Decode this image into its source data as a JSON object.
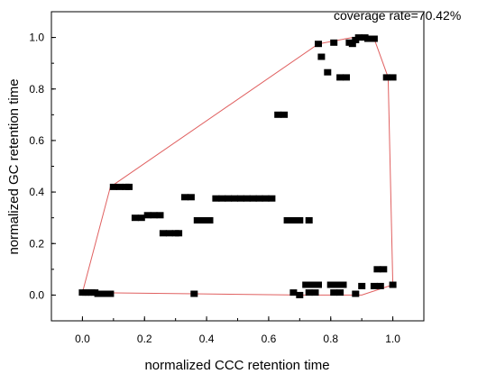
{
  "chart_data": {
    "type": "scatter",
    "annotation": "coverage rate=70.42%",
    "xlabel": "normalized CCC retention time",
    "ylabel": "normalized GC retention time",
    "xlim": [
      -0.1,
      1.1
    ],
    "ylim": [
      -0.1,
      1.1
    ],
    "xticks": [
      "0.0",
      "0.2",
      "0.4",
      "0.6",
      "0.8",
      "1.0"
    ],
    "yticks": [
      "0.0",
      "0.2",
      "0.4",
      "0.6",
      "0.8",
      "1.0"
    ],
    "grid": false,
    "marker_color": "#000000",
    "hull_color": "#e06060",
    "points": [
      [
        0.0,
        0.01
      ],
      [
        0.01,
        0.01
      ],
      [
        0.02,
        0.01
      ],
      [
        0.03,
        0.01
      ],
      [
        0.04,
        0.01
      ],
      [
        0.05,
        0.005
      ],
      [
        0.06,
        0.005
      ],
      [
        0.07,
        0.005
      ],
      [
        0.08,
        0.005
      ],
      [
        0.09,
        0.005
      ],
      [
        0.1,
        0.42
      ],
      [
        0.12,
        0.42
      ],
      [
        0.14,
        0.42
      ],
      [
        0.15,
        0.42
      ],
      [
        0.17,
        0.3
      ],
      [
        0.19,
        0.3
      ],
      [
        0.21,
        0.31
      ],
      [
        0.23,
        0.31
      ],
      [
        0.25,
        0.31
      ],
      [
        0.26,
        0.24
      ],
      [
        0.28,
        0.24
      ],
      [
        0.3,
        0.24
      ],
      [
        0.31,
        0.24
      ],
      [
        0.33,
        0.38
      ],
      [
        0.35,
        0.38
      ],
      [
        0.36,
        0.005
      ],
      [
        0.37,
        0.29
      ],
      [
        0.39,
        0.29
      ],
      [
        0.41,
        0.29
      ],
      [
        0.43,
        0.375
      ],
      [
        0.45,
        0.375
      ],
      [
        0.47,
        0.375
      ],
      [
        0.49,
        0.375
      ],
      [
        0.51,
        0.375
      ],
      [
        0.53,
        0.375
      ],
      [
        0.55,
        0.375
      ],
      [
        0.57,
        0.375
      ],
      [
        0.59,
        0.375
      ],
      [
        0.61,
        0.375
      ],
      [
        0.63,
        0.7
      ],
      [
        0.65,
        0.7
      ],
      [
        0.66,
        0.29
      ],
      [
        0.68,
        0.29
      ],
      [
        0.7,
        0.29
      ],
      [
        0.73,
        0.29
      ],
      [
        0.68,
        0.01
      ],
      [
        0.7,
        0.0
      ],
      [
        0.72,
        0.04
      ],
      [
        0.74,
        0.04
      ],
      [
        0.76,
        0.04
      ],
      [
        0.73,
        0.01
      ],
      [
        0.75,
        0.01
      ],
      [
        0.76,
        0.975
      ],
      [
        0.77,
        0.925
      ],
      [
        0.79,
        0.865
      ],
      [
        0.81,
        0.98
      ],
      [
        0.83,
        0.845
      ],
      [
        0.85,
        0.845
      ],
      [
        0.86,
        0.98
      ],
      [
        0.87,
        0.975
      ],
      [
        0.88,
        0.99
      ],
      [
        0.89,
        1.0
      ],
      [
        0.91,
        1.0
      ],
      [
        0.92,
        0.995
      ],
      [
        0.94,
        0.995
      ],
      [
        0.8,
        0.04
      ],
      [
        0.82,
        0.04
      ],
      [
        0.84,
        0.04
      ],
      [
        0.81,
        0.01
      ],
      [
        0.83,
        0.01
      ],
      [
        0.88,
        0.005
      ],
      [
        0.9,
        0.035
      ],
      [
        0.94,
        0.035
      ],
      [
        0.96,
        0.035
      ],
      [
        0.95,
        0.1
      ],
      [
        0.97,
        0.1
      ],
      [
        0.98,
        0.845
      ],
      [
        1.0,
        0.845
      ],
      [
        1.0,
        0.04
      ]
    ],
    "hull": [
      [
        0.0,
        0.01
      ],
      [
        0.09,
        0.42
      ],
      [
        0.76,
        0.975
      ],
      [
        0.87,
        1.0
      ],
      [
        0.94,
        0.995
      ],
      [
        0.985,
        0.845
      ],
      [
        1.0,
        0.04
      ],
      [
        0.9,
        0.0
      ],
      [
        0.7,
        0.0
      ],
      [
        0.36,
        0.005
      ],
      [
        0.0,
        0.01
      ]
    ]
  }
}
